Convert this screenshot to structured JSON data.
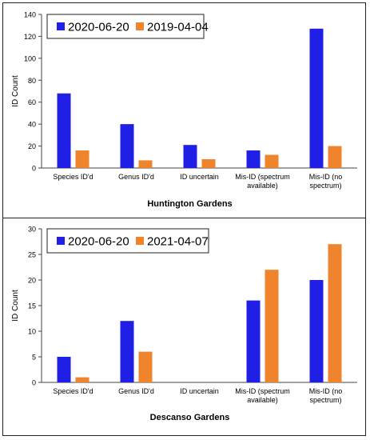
{
  "colors": {
    "series_a": "#1f1fe6",
    "series_b": "#f0842c",
    "axis": "#444444",
    "text": "#000000"
  },
  "chart_data": [
    {
      "type": "bar",
      "title": "Huntington Gardens",
      "ylabel": "ID Count",
      "xlabel": "",
      "ylim": [
        0,
        140
      ],
      "yticks": [
        0,
        20,
        40,
        60,
        80,
        100,
        120,
        140
      ],
      "grid": false,
      "legend_position": "top-left",
      "categories": [
        [
          "Species ID'd"
        ],
        [
          "Genus ID'd"
        ],
        [
          "ID uncertain"
        ],
        [
          "Mis-ID (spectrum",
          "available)"
        ],
        [
          "Mis-ID (no",
          "spectrum)"
        ]
      ],
      "series": [
        {
          "name": "2020-06-20",
          "color": "#1f1fe6",
          "values": [
            68,
            40,
            21,
            16,
            127
          ]
        },
        {
          "name": "2019-04-04",
          "color": "#f0842c",
          "values": [
            16,
            7,
            8,
            12,
            20
          ]
        }
      ]
    },
    {
      "type": "bar",
      "title": "Descanso Gardens",
      "ylabel": "ID Count",
      "xlabel": "",
      "ylim": [
        0,
        30
      ],
      "yticks": [
        0,
        5,
        10,
        15,
        20,
        25,
        30
      ],
      "grid": false,
      "legend_position": "top-left",
      "categories": [
        [
          "Species ID'd"
        ],
        [
          "Genus ID'd"
        ],
        [
          "ID uncertain"
        ],
        [
          "Mis-ID (spectrum",
          "available)"
        ],
        [
          "Mis-ID (no",
          "spectrum)"
        ]
      ],
      "series": [
        {
          "name": "2020-06-20",
          "color": "#1f1fe6",
          "values": [
            5,
            12,
            0,
            16,
            20
          ]
        },
        {
          "name": "2021-04-07",
          "color": "#f0842c",
          "values": [
            1,
            6,
            0,
            22,
            27
          ]
        }
      ]
    }
  ]
}
